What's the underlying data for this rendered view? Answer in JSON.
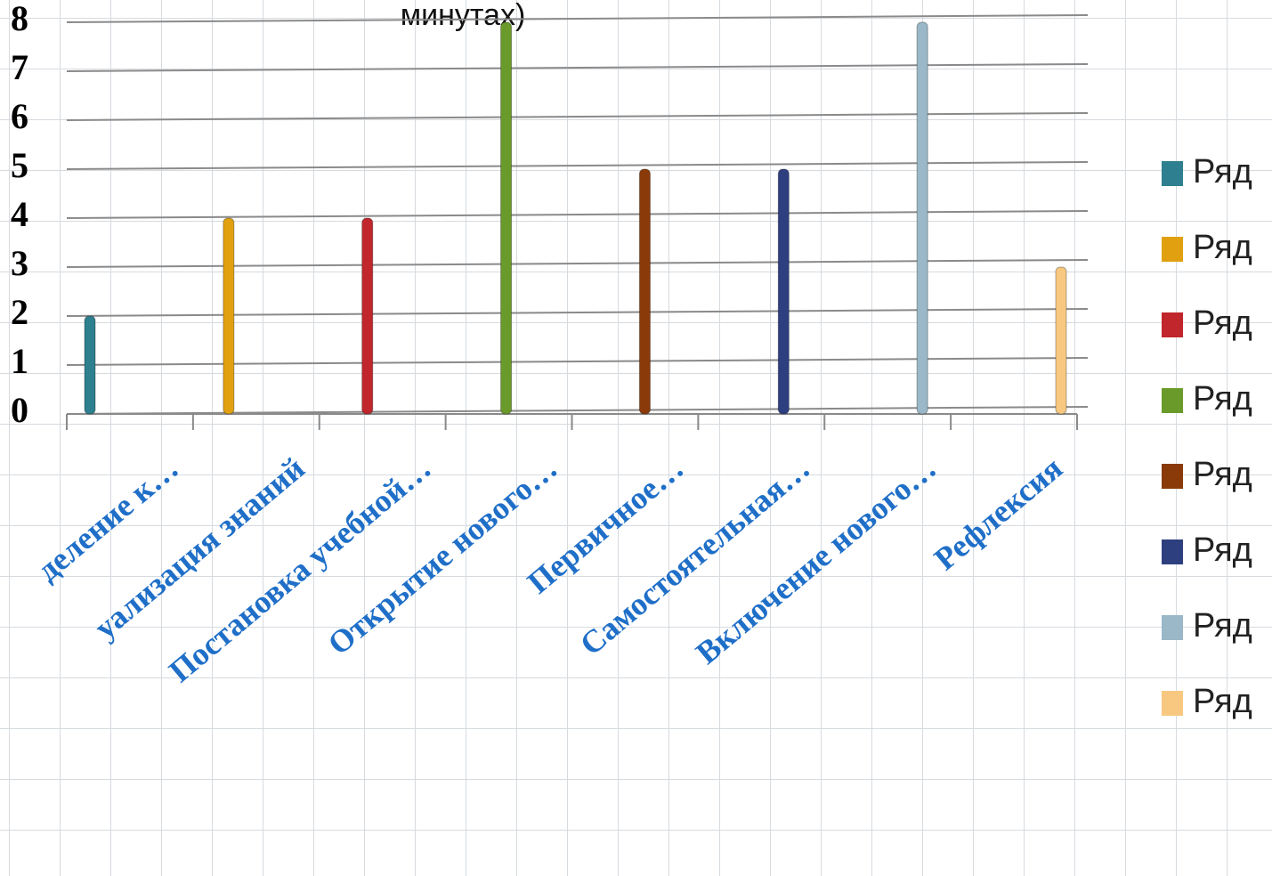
{
  "chart_data": {
    "type": "bar",
    "title": "минутах)",
    "categories": [
      "деление к…",
      "уализация знаний",
      "Постановка учебной…",
      "Открытие нового…",
      "Первичное…",
      "Самостоятельная…",
      "Включение нового…",
      "Рефлексия"
    ],
    "series": [
      {
        "name": "Ряд",
        "color": "#2e7f8f",
        "values": [
          2,
          null,
          null,
          null,
          null,
          null,
          null,
          null
        ]
      },
      {
        "name": "Ряд",
        "color": "#e0a010",
        "values": [
          null,
          4,
          null,
          null,
          null,
          null,
          null,
          null
        ]
      },
      {
        "name": "Ряд",
        "color": "#c0262c",
        "values": [
          null,
          null,
          4,
          null,
          null,
          null,
          null,
          null
        ]
      },
      {
        "name": "Ряд",
        "color": "#6a9a2a",
        "values": [
          null,
          null,
          null,
          8,
          null,
          null,
          null,
          null
        ]
      },
      {
        "name": "Ряд",
        "color": "#8a3a08",
        "values": [
          null,
          null,
          null,
          null,
          5,
          null,
          null,
          null
        ]
      },
      {
        "name": "Ряд",
        "color": "#2e3f7f",
        "values": [
          null,
          null,
          null,
          null,
          null,
          5,
          null,
          null
        ]
      },
      {
        "name": "Ряд",
        "color": "#9ab8c8",
        "values": [
          null,
          null,
          null,
          null,
          null,
          null,
          8,
          null
        ]
      },
      {
        "name": "Ряд",
        "color": "#f8c880",
        "values": [
          null,
          null,
          null,
          null,
          null,
          null,
          null,
          3
        ]
      }
    ],
    "ylim": [
      0,
      8
    ],
    "yticks": [
      0,
      1,
      2,
      3,
      4,
      5,
      6,
      7,
      8
    ],
    "grid": true
  }
}
